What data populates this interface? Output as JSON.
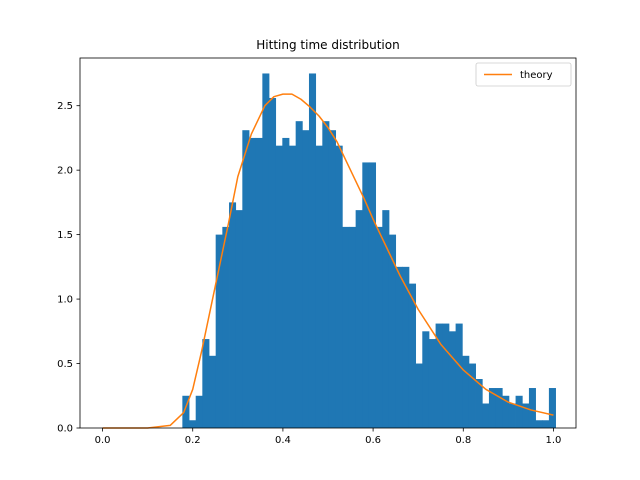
{
  "chart_data": {
    "type": "bar",
    "title": "Hitting time distribution",
    "xlabel": "",
    "ylabel": "",
    "xlim": [
      -0.05,
      1.05
    ],
    "ylim": [
      0,
      2.87
    ],
    "xticks": [
      "0.0",
      "0.2",
      "0.4",
      "0.6",
      "0.8",
      "1.0"
    ],
    "yticks": [
      "0.0",
      "0.5",
      "1.0",
      "1.5",
      "2.0",
      "2.5"
    ],
    "grid": false,
    "legend": {
      "position": "top-right",
      "entries": [
        "theory"
      ]
    },
    "histogram": {
      "color": "#1f77b4",
      "bin_edges": [
        0.177,
        0.1918,
        0.2066,
        0.2213,
        0.2361,
        0.2509,
        0.2657,
        0.2805,
        0.2952,
        0.31,
        0.3248,
        0.3396,
        0.3544,
        0.3691,
        0.3839,
        0.3987,
        0.4135,
        0.4283,
        0.443,
        0.4578,
        0.4726,
        0.4874,
        0.5022,
        0.5169,
        0.5317,
        0.5465,
        0.5613,
        0.5761,
        0.5908,
        0.6056,
        0.6204,
        0.6352,
        0.65,
        0.6647,
        0.6795,
        0.6943,
        0.7091,
        0.7239,
        0.7386,
        0.7534,
        0.7682,
        0.783,
        0.7978,
        0.8125,
        0.8273,
        0.8421,
        0.8569,
        0.8717,
        0.8864,
        0.9012,
        0.916,
        0.9308,
        0.9456,
        0.9603,
        0.9751,
        0.9899,
        1.0047
      ],
      "values": [
        0.25,
        0.06,
        0.25,
        0.69,
        0.56,
        1.5,
        1.56,
        1.75,
        1.69,
        2.31,
        2.25,
        2.25,
        2.75,
        2.56,
        2.19,
        2.25,
        2.19,
        2.38,
        2.31,
        2.75,
        2.19,
        2.38,
        2.31,
        2.19,
        1.56,
        1.56,
        1.69,
        2.06,
        2.06,
        1.56,
        1.69,
        1.5,
        1.25,
        1.25,
        1.12,
        0.5,
        0.75,
        0.69,
        0.81,
        0.81,
        0.75,
        0.81,
        0.56,
        0.5,
        0.38,
        0.19,
        0.31,
        0.31,
        0.25,
        0.19,
        0.25,
        0.19,
        0.31,
        0.06,
        0.06,
        0.31
      ]
    },
    "series": [
      {
        "name": "theory",
        "color": "#ff7f0e",
        "x": [
          0.0,
          0.05,
          0.1,
          0.15,
          0.18,
          0.2,
          0.22,
          0.25,
          0.28,
          0.3,
          0.33,
          0.36,
          0.38,
          0.4,
          0.42,
          0.44,
          0.46,
          0.48,
          0.5,
          0.52,
          0.55,
          0.58,
          0.6,
          0.63,
          0.66,
          0.7,
          0.75,
          0.8,
          0.85,
          0.9,
          0.95,
          1.0
        ],
        "y": [
          0.0,
          0.0,
          0.0,
          0.02,
          0.12,
          0.3,
          0.6,
          1.1,
          1.6,
          1.95,
          2.28,
          2.5,
          2.57,
          2.59,
          2.59,
          2.55,
          2.49,
          2.42,
          2.33,
          2.22,
          2.0,
          1.78,
          1.62,
          1.4,
          1.18,
          0.92,
          0.65,
          0.45,
          0.3,
          0.2,
          0.14,
          0.1
        ]
      }
    ]
  }
}
